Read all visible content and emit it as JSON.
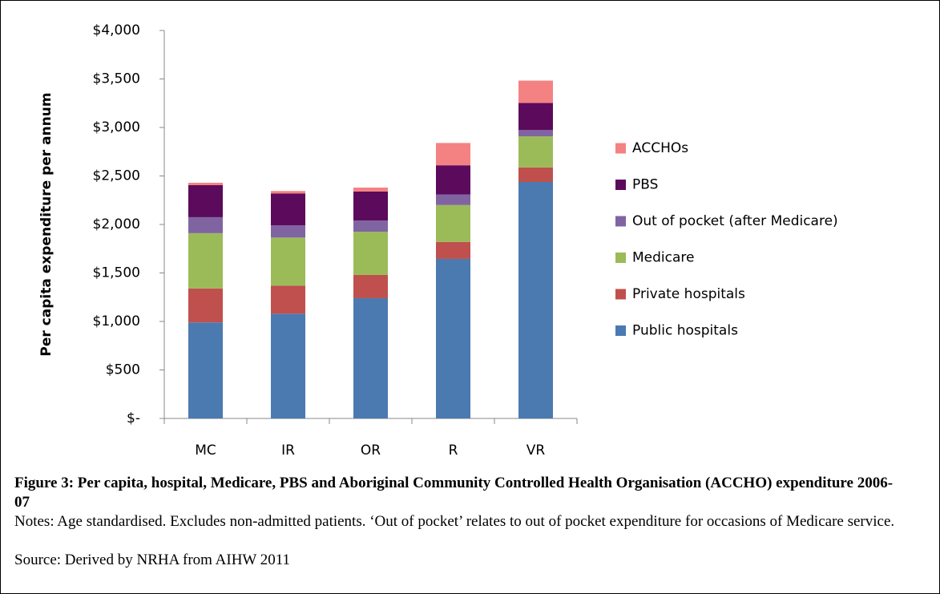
{
  "chart_data": {
    "type": "stacked-bar",
    "ylabel": "Per capita expenditure per annum",
    "categories": [
      "MC",
      "IR",
      "OR",
      "R",
      "VR"
    ],
    "series": [
      {
        "name": "Public hospitals",
        "color": "#4a7ab0",
        "values": [
          990,
          1080,
          1240,
          1645,
          2438
        ]
      },
      {
        "name": "Private hospitals",
        "color": "#c0504d",
        "values": [
          350,
          290,
          240,
          175,
          150
        ]
      },
      {
        "name": "Medicare",
        "color": "#9bbb59",
        "values": [
          570,
          495,
          445,
          380,
          320
        ]
      },
      {
        "name": "Out of pocket (after Medicare)",
        "color": "#8064a2",
        "values": [
          165,
          125,
          115,
          110,
          65
        ]
      },
      {
        "name": "PBS",
        "color": "#5c0a5c",
        "values": [
          330,
          330,
          300,
          300,
          280
        ]
      },
      {
        "name": "ACCHOs",
        "color": "#f48282",
        "values": [
          25,
          25,
          40,
          230,
          230
        ]
      }
    ],
    "ylim": [
      0,
      4000
    ],
    "yticks": [
      {
        "value": 0,
        "label": "$-"
      },
      {
        "value": 500,
        "label": "$500"
      },
      {
        "value": 1000,
        "label": "$1,000"
      },
      {
        "value": 1500,
        "label": "$1,500"
      },
      {
        "value": 2000,
        "label": "$2,000"
      },
      {
        "value": 2500,
        "label": "$2,500"
      },
      {
        "value": 3000,
        "label": "$3,000"
      },
      {
        "value": 3500,
        "label": "$3,500"
      },
      {
        "value": 4000,
        "label": "$4,000"
      }
    ],
    "legend": "right"
  },
  "caption": {
    "title": "Figure 3: Per capita, hospital, Medicare, PBS and Aboriginal Community Controlled Health Organisation (ACCHO) expenditure 2006-07",
    "notes": "Notes: Age standardised. Excludes non-admitted patients. ‘Out of pocket’ relates to out of pocket expenditure for occasions of Medicare service.",
    "source": "Source: Derived by NRHA from AIHW 2011"
  }
}
